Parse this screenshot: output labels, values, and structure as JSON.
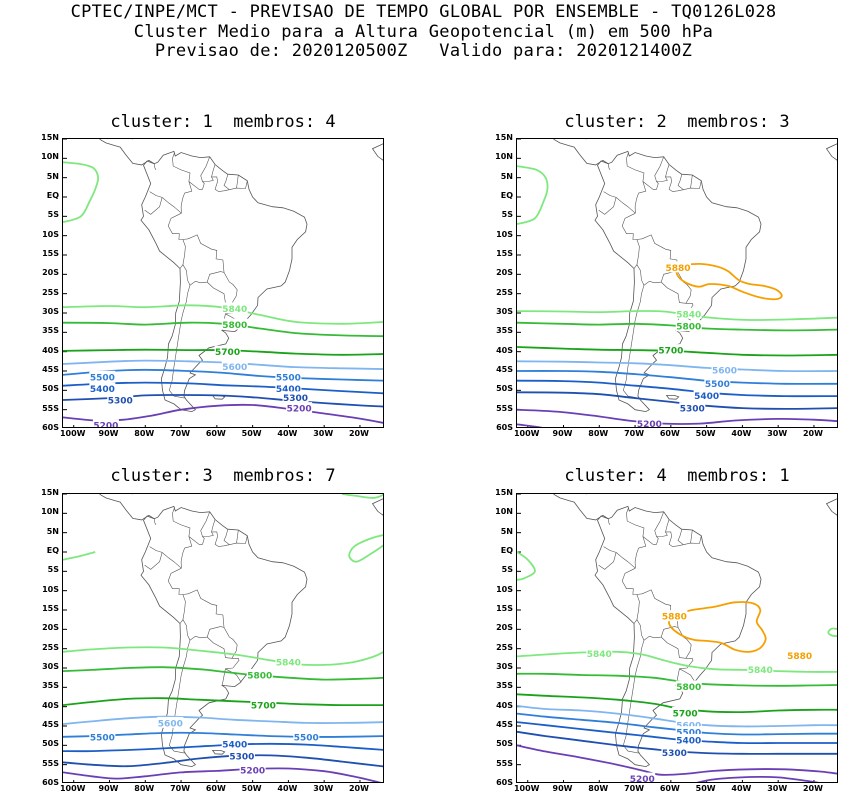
{
  "header": {
    "line1": "CPTEC/INPE/MCT - PREVISAO DE TEMPO GLOBAL POR ENSEMBLE - TQ0126L028",
    "line2": "Cluster Medio para a Altura Geopotencial (m) em 500 hPa",
    "line3": "Previsao de: 2020120500Z   Valido para: 2020121400Z"
  },
  "axes": {
    "lat_labels": [
      "15N",
      "10N",
      "5N",
      "EQ",
      "5S",
      "10S",
      "15S",
      "20S",
      "25S",
      "30S",
      "35S",
      "40S",
      "45S",
      "50S",
      "55S",
      "60S"
    ],
    "lon_labels": [
      "100W",
      "90W",
      "80W",
      "70W",
      "60W",
      "50W",
      "40W",
      "30W",
      "20W"
    ]
  },
  "colors": {
    "5200": "#6a3fb5",
    "5300": "#1f4fb0",
    "5400": "#1c5ec8",
    "5500": "#2f7fd9",
    "5600": "#80b6ef",
    "5700": "#1aa31a",
    "5800": "#36bb36",
    "5840": "#7ee87e",
    "5880": "#f5a000",
    "map": "#555555"
  },
  "panels": [
    {
      "title": "cluster: 1  membros: 4",
      "labels": [
        {
          "t": "5840",
          "lon": -55,
          "lat": -28.8,
          "c": "5840"
        },
        {
          "t": "5800",
          "lon": -55,
          "lat": -33,
          "c": "5800"
        },
        {
          "t": "5700",
          "lon": -57,
          "lat": -40,
          "c": "5700"
        },
        {
          "t": "5600",
          "lon": -55,
          "lat": -43.8,
          "c": "5600"
        },
        {
          "t": "5500",
          "lon": -92,
          "lat": -46.5,
          "c": "5500"
        },
        {
          "t": "5500",
          "lon": -40,
          "lat": -46.5,
          "c": "5500"
        },
        {
          "t": "5400",
          "lon": -92,
          "lat": -49.5,
          "c": "5400"
        },
        {
          "t": "5400",
          "lon": -40,
          "lat": -49.5,
          "c": "5400"
        },
        {
          "t": "5300",
          "lon": -87,
          "lat": -52.5,
          "c": "5300"
        },
        {
          "t": "5300",
          "lon": -38,
          "lat": -51.8,
          "c": "5300"
        },
        {
          "t": "5200",
          "lon": -37,
          "lat": -54.6,
          "c": "5200"
        },
        {
          "t": "5200",
          "lon": -91,
          "lat": -59,
          "c": "5200"
        }
      ]
    },
    {
      "title": "cluster: 2  membros: 3",
      "labels": [
        {
          "t": "5880",
          "lon": -58,
          "lat": -18.2,
          "c": "5880"
        },
        {
          "t": "5840",
          "lon": -55,
          "lat": -30.2,
          "c": "5840"
        },
        {
          "t": "5800",
          "lon": -55,
          "lat": -33.4,
          "c": "5800"
        },
        {
          "t": "5700",
          "lon": -60,
          "lat": -39.6,
          "c": "5700"
        },
        {
          "t": "5600",
          "lon": -45,
          "lat": -44.8,
          "c": "5600"
        },
        {
          "t": "5500",
          "lon": -47,
          "lat": -48.2,
          "c": "5500"
        },
        {
          "t": "5400",
          "lon": -50,
          "lat": -51.4,
          "c": "5400"
        },
        {
          "t": "5300",
          "lon": -54,
          "lat": -54.6,
          "c": "5300"
        },
        {
          "t": "5200",
          "lon": -66,
          "lat": -58.6,
          "c": "5200"
        }
      ]
    },
    {
      "title": "cluster: 3  membros: 7",
      "labels": [
        {
          "t": "5840",
          "lon": -40,
          "lat": -28.4,
          "c": "5840"
        },
        {
          "t": "5800",
          "lon": -48,
          "lat": -31.8,
          "c": "5800"
        },
        {
          "t": "5700",
          "lon": -47,
          "lat": -39.6,
          "c": "5700"
        },
        {
          "t": "5600",
          "lon": -73,
          "lat": -44.2,
          "c": "5600"
        },
        {
          "t": "5500",
          "lon": -92,
          "lat": -47.8,
          "c": "5500"
        },
        {
          "t": "5500",
          "lon": -35,
          "lat": -47.8,
          "c": "5500"
        },
        {
          "t": "5400",
          "lon": -55,
          "lat": -49.6,
          "c": "5400"
        },
        {
          "t": "5300",
          "lon": -53,
          "lat": -52.8,
          "c": "5300"
        },
        {
          "t": "5200",
          "lon": -50,
          "lat": -56.4,
          "c": "5200"
        }
      ]
    },
    {
      "title": "cluster: 4  membros: 1",
      "labels": [
        {
          "t": "5880",
          "lon": -59,
          "lat": -16.6,
          "c": "5880"
        },
        {
          "t": "5880",
          "lon": -24,
          "lat": -26.8,
          "c": "5880"
        },
        {
          "t": "5840",
          "lon": -80,
          "lat": -26.2,
          "c": "5840"
        },
        {
          "t": "5840",
          "lon": -35,
          "lat": -30.4,
          "c": "5840"
        },
        {
          "t": "5800",
          "lon": -55,
          "lat": -34.8,
          "c": "5800"
        },
        {
          "t": "5700",
          "lon": -56,
          "lat": -41.6,
          "c": "5700"
        },
        {
          "t": "5600",
          "lon": -55,
          "lat": -44.8,
          "c": "5600"
        },
        {
          "t": "5500",
          "lon": -55,
          "lat": -46.6,
          "c": "5500"
        },
        {
          "t": "5400",
          "lon": -55,
          "lat": -48.6,
          "c": "5400"
        },
        {
          "t": "5300",
          "lon": -59,
          "lat": -51.8,
          "c": "5300"
        },
        {
          "t": "5200",
          "lon": -68,
          "lat": -58.6,
          "c": "5200"
        }
      ]
    }
  ]
}
